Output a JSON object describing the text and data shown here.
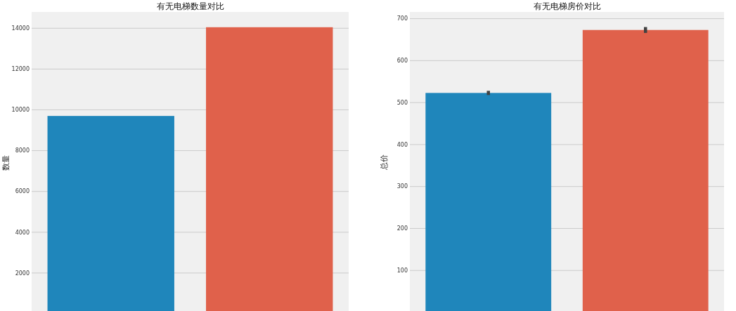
{
  "chart_data": [
    {
      "type": "bar",
      "title": "有无电梯数量对比",
      "ylabel": "数量",
      "categories": [
        null,
        null
      ],
      "values": [
        9700,
        14050
      ],
      "colors": [
        "#1f86bb",
        "#e0614b"
      ],
      "ylim": [
        0,
        14800
      ],
      "yticks": [
        2000,
        4000,
        6000,
        8000,
        10000,
        12000,
        14000
      ],
      "grid": "y",
      "tick_labels": "y"
    },
    {
      "type": "bar",
      "title": "有无电梯房价对比",
      "ylabel": "总价",
      "categories": [
        null,
        null
      ],
      "values": [
        523,
        673
      ],
      "errors": [
        5,
        7
      ],
      "colors": [
        "#1f86bb",
        "#e0614b"
      ],
      "ylim": [
        0,
        716
      ],
      "yticks": [
        100,
        200,
        300,
        400,
        500,
        600,
        700
      ],
      "grid": "y",
      "tick_labels": "y"
    }
  ]
}
